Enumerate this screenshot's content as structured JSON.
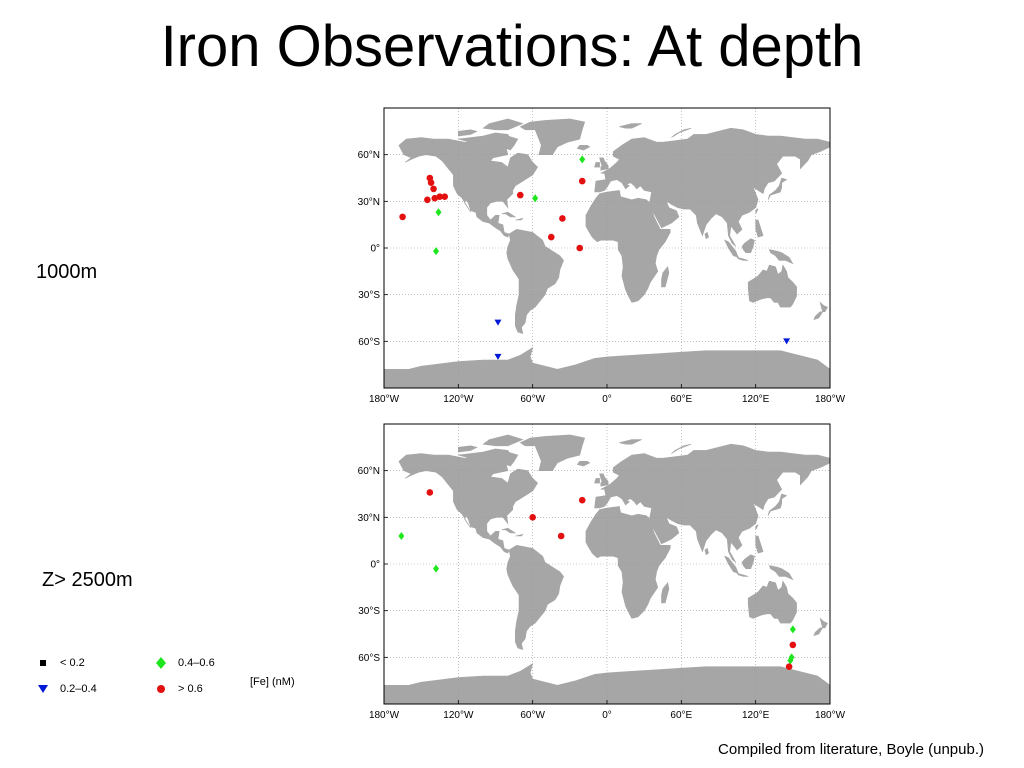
{
  "title": "Iron Observations: At depth",
  "credit": "Compiled from literature, Boyle (unpub.)",
  "colors": {
    "land": "#a6a6a6",
    "ocean": "#ffffff",
    "frame": "#000000",
    "grid": "#9a9a9a",
    "lt_0_2": "#000000",
    "range_0_2_0_4": "#0018d8",
    "range_0_4_0_6": "#1ee61e",
    "gt_0_6": "#e41010"
  },
  "axes": {
    "lon_ticks": [
      "180°W",
      "120°W",
      "60°W",
      "0°",
      "60°E",
      "120°E",
      "180°W"
    ],
    "lon_values": [
      -180,
      -120,
      -60,
      0,
      60,
      120,
      180
    ],
    "lat_ticks": [
      "60°N",
      "30°N",
      "0°",
      "30°S",
      "60°S"
    ],
    "lat_values": [
      60,
      30,
      0,
      -30,
      -60
    ],
    "lon_range": [
      -180,
      180
    ],
    "lat_range": [
      -90,
      90
    ]
  },
  "legend": {
    "items": [
      {
        "label": "< 0.2",
        "symbol": "square",
        "key": "lt_0_2"
      },
      {
        "label": "0.2–0.4",
        "symbol": "triangle",
        "key": "range_0_2_0_4"
      },
      {
        "label": "0.4–0.6",
        "symbol": "diamond",
        "key": "range_0_4_0_6"
      },
      {
        "label": "> 0.6",
        "symbol": "circle",
        "key": "gt_0_6"
      }
    ],
    "units": "[Fe]   (nM)"
  },
  "panels": [
    {
      "depth_label": "1000m",
      "points": [
        {
          "lon": -165,
          "lat": 20,
          "category": "gt_0_6"
        },
        {
          "lon": -143,
          "lat": 45,
          "category": "gt_0_6"
        },
        {
          "lon": -142,
          "lat": 42,
          "category": "gt_0_6"
        },
        {
          "lon": -140,
          "lat": 38,
          "category": "gt_0_6"
        },
        {
          "lon": -145,
          "lat": 31,
          "category": "gt_0_6"
        },
        {
          "lon": -139,
          "lat": 32,
          "category": "gt_0_6"
        },
        {
          "lon": -135,
          "lat": 33,
          "category": "gt_0_6"
        },
        {
          "lon": -131,
          "lat": 33,
          "category": "gt_0_6"
        },
        {
          "lon": -136,
          "lat": 23,
          "category": "range_0_4_0_6"
        },
        {
          "lon": -138,
          "lat": -2,
          "category": "range_0_4_0_6"
        },
        {
          "lon": -70,
          "lat": 34,
          "category": "gt_0_6"
        },
        {
          "lon": -58,
          "lat": 32,
          "category": "range_0_4_0_6"
        },
        {
          "lon": -20,
          "lat": 57,
          "category": "range_0_4_0_6"
        },
        {
          "lon": -20,
          "lat": 43,
          "category": "gt_0_6"
        },
        {
          "lon": -36,
          "lat": 19,
          "category": "gt_0_6"
        },
        {
          "lon": -45,
          "lat": 7,
          "category": "gt_0_6"
        },
        {
          "lon": -22,
          "lat": 0,
          "category": "gt_0_6"
        },
        {
          "lon": -88,
          "lat": -48,
          "category": "range_0_2_0_4"
        },
        {
          "lon": -88,
          "lat": -70,
          "category": "range_0_2_0_4"
        },
        {
          "lon": 145,
          "lat": -60,
          "category": "range_0_2_0_4"
        }
      ]
    },
    {
      "depth_label": "Z> 2500m",
      "points": [
        {
          "lon": -143,
          "lat": 46,
          "category": "gt_0_6"
        },
        {
          "lon": -60,
          "lat": 30,
          "category": "gt_0_6"
        },
        {
          "lon": -20,
          "lat": 41,
          "category": "gt_0_6"
        },
        {
          "lon": -37,
          "lat": 18,
          "category": "gt_0_6"
        },
        {
          "lon": -166,
          "lat": 18,
          "category": "range_0_4_0_6"
        },
        {
          "lon": -138,
          "lat": -3,
          "category": "range_0_4_0_6"
        },
        {
          "lon": 150,
          "lat": -42,
          "category": "range_0_4_0_6"
        },
        {
          "lon": 150,
          "lat": -52,
          "category": "gt_0_6"
        },
        {
          "lon": 149,
          "lat": -60,
          "category": "range_0_4_0_6"
        },
        {
          "lon": 148,
          "lat": -62,
          "category": "range_0_4_0_6"
        },
        {
          "lon": 147,
          "lat": -66,
          "category": "gt_0_6"
        }
      ]
    }
  ]
}
